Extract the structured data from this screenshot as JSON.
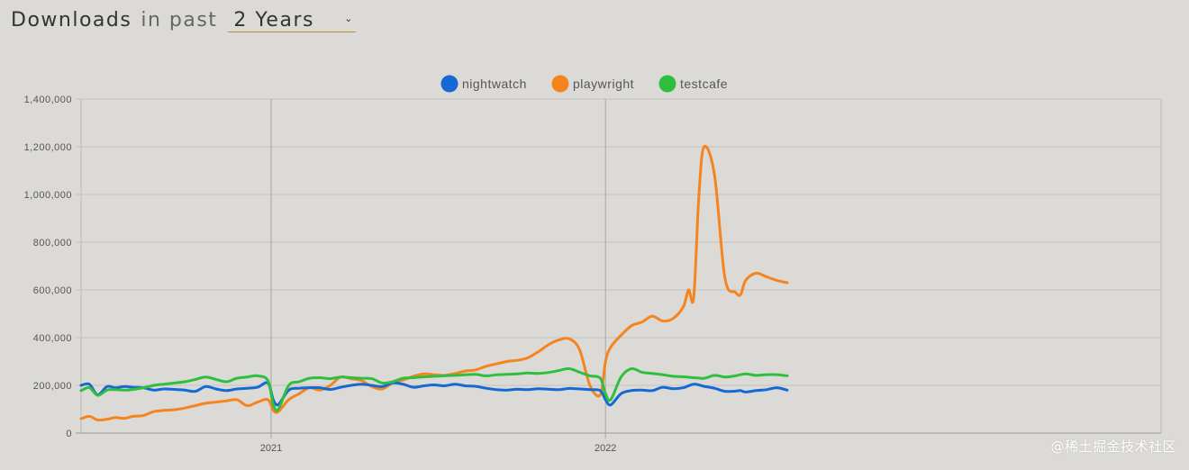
{
  "header": {
    "title": "Downloads",
    "subtitle": "in past",
    "period": "2 Years"
  },
  "watermark": "@稀土掘金技术社区",
  "chart_data": {
    "type": "line",
    "title": "",
    "xlabel": "",
    "ylabel": "",
    "ylim": [
      0,
      1400000
    ],
    "y_ticks": [
      0,
      200000,
      400000,
      600000,
      800000,
      1000000,
      1200000,
      1400000
    ],
    "y_tick_labels": [
      "0",
      "200,000",
      "400,000",
      "600,000",
      "800,000",
      "1,000,000",
      "1,200,000",
      "1,400,000"
    ],
    "x_range": [
      0,
      104
    ],
    "x_ticks": [
      {
        "x": 18.3,
        "label": "2021"
      },
      {
        "x": 50.5,
        "label": "2022"
      }
    ],
    "grid": true,
    "legend_position": "top-center",
    "series": [
      {
        "name": "nightwatch",
        "color": "#1469d4",
        "x": [
          0,
          0.8,
          1.6,
          2.5,
          3.3,
          4.2,
          5,
          6,
          7,
          8,
          9,
          10,
          11,
          12,
          13,
          14,
          15,
          16,
          17,
          18,
          18.5,
          19,
          20,
          21,
          22,
          23,
          24,
          25,
          26,
          27,
          28,
          29,
          30,
          31,
          32,
          33,
          34,
          35,
          36,
          37,
          38,
          39,
          40,
          41,
          42,
          43,
          44,
          45,
          46,
          47,
          48,
          49,
          50,
          50.5,
          51,
          52,
          53,
          54,
          55,
          56,
          57,
          58,
          59,
          60,
          61,
          62,
          63,
          63.5,
          64,
          65,
          66,
          67,
          68
        ],
        "values": [
          200000,
          205000,
          160000,
          195000,
          190000,
          195000,
          192000,
          190000,
          180000,
          185000,
          183000,
          180000,
          175000,
          195000,
          185000,
          178000,
          185000,
          188000,
          192000,
          210000,
          140000,
          120000,
          180000,
          188000,
          190000,
          190000,
          183000,
          192000,
          200000,
          205000,
          200000,
          195000,
          210000,
          205000,
          192000,
          198000,
          202000,
          198000,
          205000,
          198000,
          196000,
          188000,
          182000,
          180000,
          184000,
          182000,
          186000,
          184000,
          182000,
          187000,
          185000,
          182000,
          178000,
          140000,
          118000,
          165000,
          178000,
          180000,
          178000,
          192000,
          186000,
          190000,
          205000,
          196000,
          188000,
          175000,
          176000,
          178000,
          172000,
          178000,
          182000,
          190000,
          180000
        ]
      },
      {
        "name": "playwright",
        "color": "#f5841f",
        "x": [
          0,
          0.8,
          1.6,
          2.5,
          3.3,
          4.2,
          5,
          6,
          7,
          8,
          9,
          10,
          11,
          12,
          13,
          14,
          15,
          16,
          17,
          18,
          18.5,
          19,
          20,
          21,
          22,
          23,
          24,
          25,
          26,
          27,
          28,
          29,
          30,
          31,
          32,
          33,
          34,
          35,
          36,
          37,
          38,
          39,
          40,
          41,
          42,
          43,
          44,
          45,
          46,
          47,
          48,
          49,
          50,
          50.5,
          51,
          52,
          53,
          54,
          55,
          56,
          57,
          58,
          58.5,
          59,
          59.5,
          60,
          61,
          62,
          63,
          63.5,
          64,
          65,
          66,
          67,
          68
        ],
        "values": [
          60000,
          70000,
          55000,
          58000,
          65000,
          62000,
          70000,
          74000,
          90000,
          95000,
          98000,
          105000,
          115000,
          125000,
          130000,
          135000,
          140000,
          115000,
          130000,
          140000,
          95000,
          90000,
          140000,
          165000,
          190000,
          180000,
          200000,
          235000,
          228000,
          220000,
          195000,
          185000,
          210000,
          222000,
          238000,
          248000,
          245000,
          242000,
          250000,
          260000,
          265000,
          280000,
          290000,
          300000,
          305000,
          315000,
          340000,
          370000,
          390000,
          395000,
          350000,
          200000,
          160000,
          300000,
          360000,
          410000,
          450000,
          465000,
          490000,
          470000,
          480000,
          530000,
          600000,
          570000,
          1000000,
          1200000,
          1080000,
          650000,
          590000,
          580000,
          640000,
          670000,
          655000,
          640000,
          630000
        ]
      },
      {
        "name": "testcafe",
        "color": "#2fbf3e",
        "x": [
          0,
          0.8,
          1.6,
          2.5,
          3.3,
          4.2,
          5,
          6,
          7,
          8,
          9,
          10,
          11,
          12,
          13,
          14,
          15,
          16,
          17,
          18,
          18.5,
          19,
          20,
          21,
          22,
          23,
          24,
          25,
          26,
          27,
          28,
          29,
          30,
          31,
          32,
          33,
          34,
          35,
          36,
          37,
          38,
          39,
          40,
          41,
          42,
          43,
          44,
          45,
          46,
          47,
          48,
          49,
          50,
          50.5,
          51,
          52,
          53,
          54,
          55,
          56,
          57,
          58,
          59,
          60,
          61,
          62,
          63,
          64,
          65,
          66,
          67,
          68
        ],
        "values": [
          178000,
          190000,
          158000,
          180000,
          182000,
          180000,
          183000,
          190000,
          200000,
          205000,
          210000,
          215000,
          225000,
          235000,
          225000,
          215000,
          230000,
          235000,
          240000,
          220000,
          120000,
          100000,
          200000,
          215000,
          230000,
          232000,
          228000,
          235000,
          232000,
          230000,
          228000,
          210000,
          215000,
          230000,
          232000,
          236000,
          238000,
          240000,
          242000,
          244000,
          246000,
          240000,
          244000,
          246000,
          248000,
          252000,
          250000,
          254000,
          262000,
          270000,
          255000,
          240000,
          230000,
          165000,
          140000,
          235000,
          270000,
          255000,
          250000,
          245000,
          238000,
          236000,
          232000,
          230000,
          242000,
          235000,
          240000,
          248000,
          242000,
          245000,
          245000,
          240000
        ]
      }
    ]
  }
}
